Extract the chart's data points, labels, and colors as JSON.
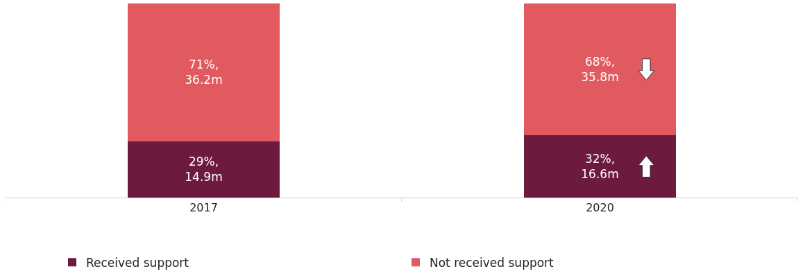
{
  "chart_data": {
    "type": "bar",
    "stacked": true,
    "categories": [
      "2017",
      "2020"
    ],
    "series": [
      {
        "name": "Received support",
        "color": "#6d1a3f",
        "values": [
          29,
          32
        ],
        "value_labels": [
          "29%,\n14.9m",
          "32%,\n16.6m"
        ]
      },
      {
        "name": "Not received support",
        "color": "#e05a5f",
        "values": [
          71,
          68
        ],
        "value_labels": [
          "71%,\n36.2m",
          "68%,\n35.8m"
        ]
      }
    ],
    "legend": "bottom",
    "tick_labels": "x"
  }
}
